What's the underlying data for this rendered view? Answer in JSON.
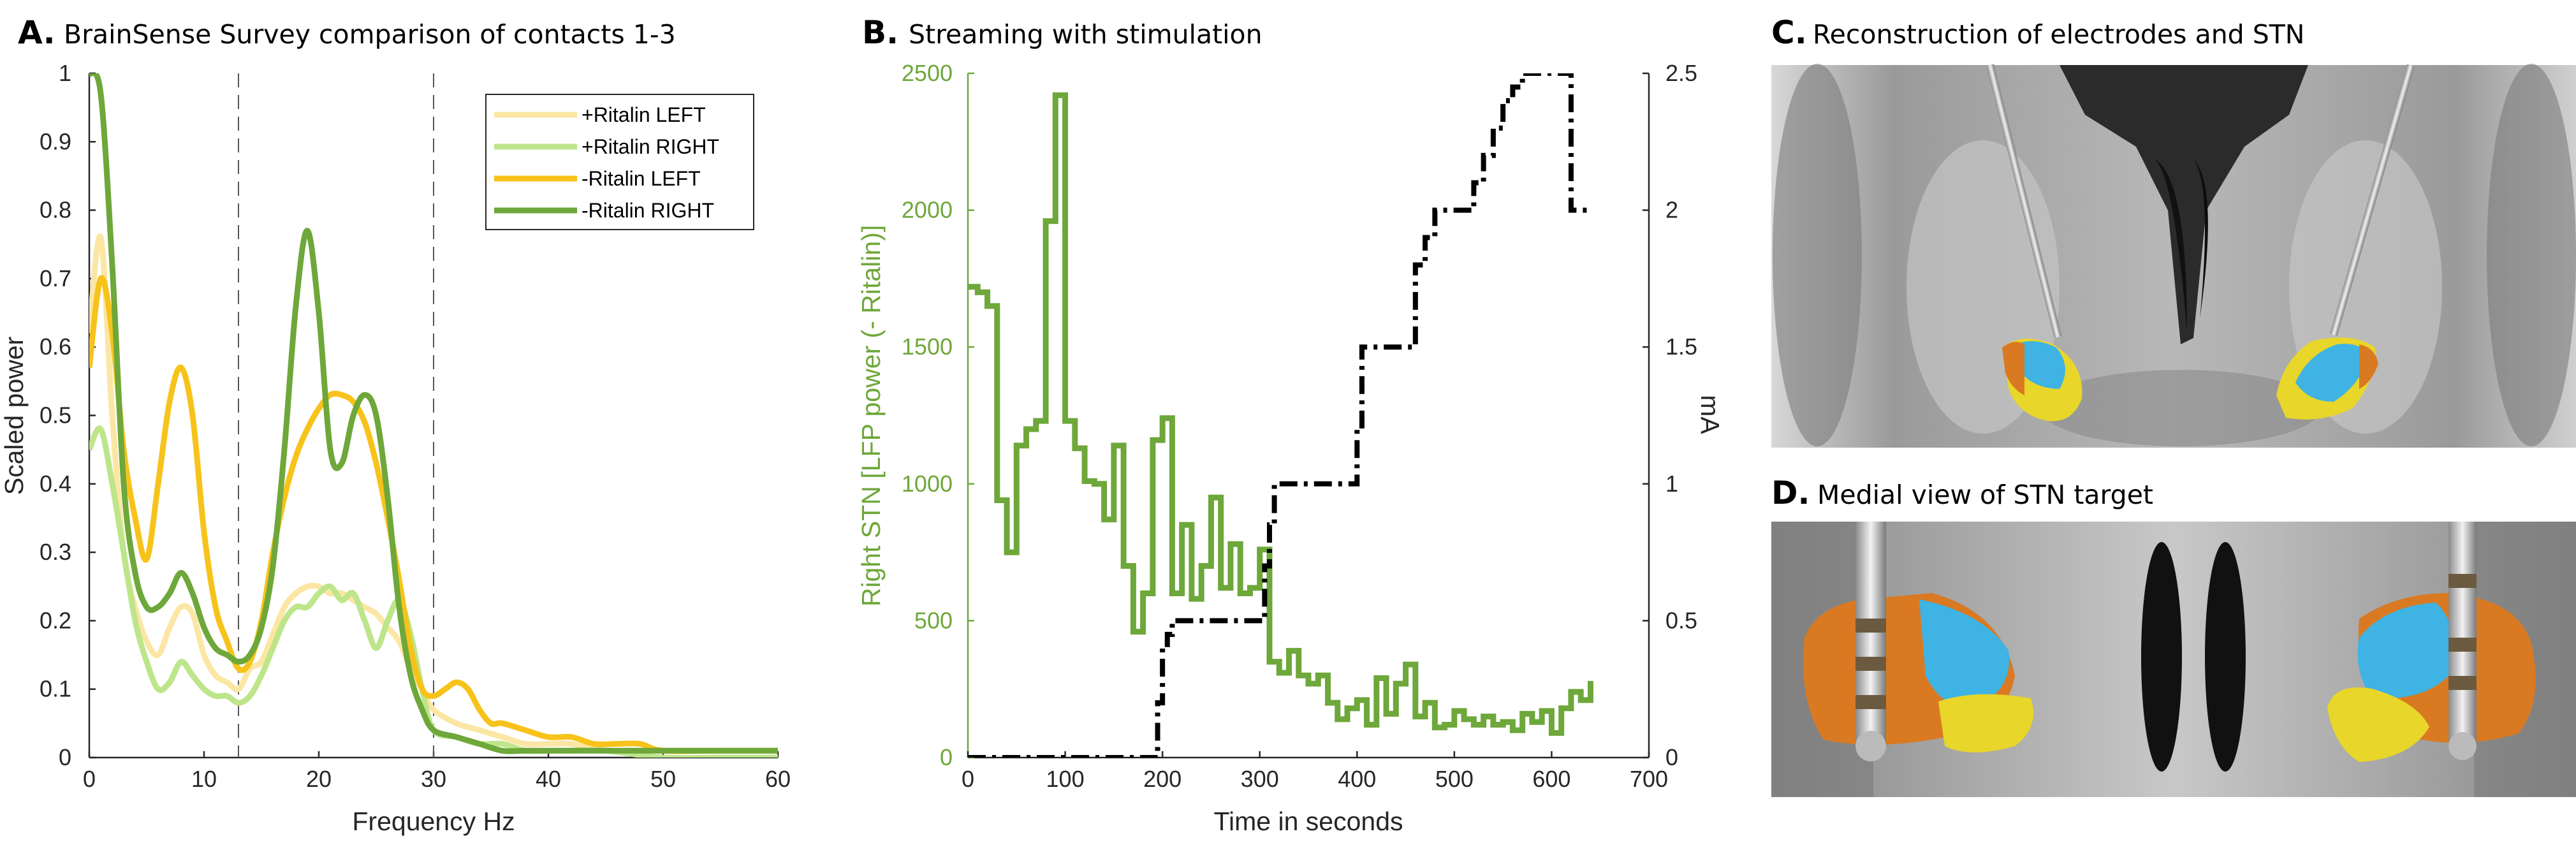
{
  "panels": {
    "a": {
      "letter": "A.",
      "title": "BrainSense Survey comparison of contacts 1-3",
      "xlabel": "Frequency Hz",
      "ylabel": "Scaled power",
      "legend": [
        "+Ritalin LEFT",
        "+Ritalin RIGHT",
        "-Ritalin LEFT",
        "-Ritalin RIGHT"
      ]
    },
    "b": {
      "letter": "B.",
      "title": "Streaming with stimulation",
      "xlabel": "Time in seconds",
      "ylabel_left": "Right STN [LFP power (- Ritalin)]",
      "ylabel_right": "mA"
    },
    "c": {
      "letter": "C.",
      "title": "Reconstruction of electrodes and STN"
    },
    "d": {
      "letter": "D.",
      "title": "Medial view of STN target"
    }
  },
  "colors": {
    "plus_left": "#fbe6a4",
    "plus_right": "#bde58a",
    "minus_left": "#f7c31b",
    "minus_right": "#6ea73a",
    "lfp": "#6ea73a",
    "stim": "#000000",
    "stn_blue": "#3fb3e3",
    "stn_orange": "#d97a22",
    "stn_yellow": "#e8d62a"
  },
  "chart_data": [
    {
      "type": "line",
      "panel": "A",
      "xlim": [
        0,
        60
      ],
      "ylim": [
        0,
        1
      ],
      "xticks": [
        "0",
        "10",
        "20",
        "30",
        "40",
        "50",
        "60"
      ],
      "yticks": [
        "0",
        "0.1",
        "0.2",
        "0.3",
        "0.4",
        "0.5",
        "0.6",
        "0.7",
        "0.8",
        "0.9",
        "1"
      ],
      "vlines": [
        13,
        30
      ],
      "legend_position": "top-right",
      "series": [
        {
          "name": "+Ritalin LEFT",
          "color": "#fbe6a4",
          "x": [
            0,
            1,
            2,
            3,
            4,
            5,
            6,
            7,
            8,
            9,
            10,
            11,
            12,
            13,
            14,
            15,
            16,
            17,
            18,
            19,
            20,
            21,
            22,
            23,
            24,
            25,
            26,
            27,
            28,
            29,
            30,
            32,
            34,
            36,
            38,
            40,
            42,
            45,
            50,
            55,
            60
          ],
          "y": [
            0.62,
            0.76,
            0.5,
            0.3,
            0.22,
            0.17,
            0.15,
            0.19,
            0.22,
            0.21,
            0.15,
            0.12,
            0.11,
            0.1,
            0.13,
            0.14,
            0.18,
            0.22,
            0.24,
            0.25,
            0.25,
            0.24,
            0.24,
            0.23,
            0.22,
            0.21,
            0.19,
            0.17,
            0.13,
            0.1,
            0.07,
            0.05,
            0.04,
            0.03,
            0.02,
            0.02,
            0.02,
            0.01,
            0.01,
            0.01,
            0.01
          ]
        },
        {
          "name": "+Ritalin RIGHT",
          "color": "#bde58a",
          "x": [
            0,
            1,
            2,
            3,
            4,
            5,
            6,
            7,
            8,
            9,
            10,
            11,
            12,
            13,
            14,
            15,
            16,
            17,
            18,
            19,
            20,
            21,
            22,
            23,
            24,
            25,
            26,
            27,
            28,
            29,
            30,
            32,
            34,
            36,
            38,
            40,
            42,
            45,
            50,
            55,
            60
          ],
          "y": [
            0.45,
            0.48,
            0.4,
            0.3,
            0.2,
            0.14,
            0.1,
            0.11,
            0.14,
            0.12,
            0.1,
            0.09,
            0.09,
            0.08,
            0.09,
            0.12,
            0.16,
            0.2,
            0.22,
            0.22,
            0.24,
            0.25,
            0.23,
            0.24,
            0.2,
            0.16,
            0.2,
            0.23,
            0.18,
            0.1,
            0.04,
            0.03,
            0.02,
            0.02,
            0.01,
            0.01,
            0.01,
            0.01,
            0.0,
            0.0,
            0.0
          ]
        },
        {
          "name": "-Ritalin LEFT",
          "color": "#f7c31b",
          "x": [
            0,
            1,
            2,
            3,
            4,
            5,
            6,
            7,
            8,
            9,
            10,
            11,
            12,
            13,
            14,
            15,
            16,
            17,
            18,
            19,
            20,
            21,
            22,
            23,
            24,
            25,
            26,
            27,
            28,
            29,
            30,
            31,
            32,
            33,
            34,
            35,
            36,
            38,
            40,
            42,
            44,
            46,
            48,
            50,
            55,
            60
          ],
          "y": [
            0.57,
            0.7,
            0.62,
            0.45,
            0.35,
            0.29,
            0.4,
            0.52,
            0.57,
            0.5,
            0.33,
            0.22,
            0.17,
            0.13,
            0.14,
            0.2,
            0.3,
            0.38,
            0.44,
            0.48,
            0.51,
            0.53,
            0.53,
            0.52,
            0.49,
            0.43,
            0.35,
            0.26,
            0.16,
            0.1,
            0.09,
            0.1,
            0.11,
            0.1,
            0.07,
            0.05,
            0.05,
            0.04,
            0.03,
            0.03,
            0.02,
            0.02,
            0.02,
            0.01,
            0.01,
            0.01
          ]
        },
        {
          "name": "-Ritalin RIGHT",
          "color": "#6ea73a",
          "x": [
            0,
            1,
            2,
            3,
            4,
            5,
            6,
            7,
            8,
            9,
            10,
            11,
            12,
            13,
            14,
            15,
            16,
            17,
            18,
            19,
            20,
            21,
            22,
            23,
            24,
            25,
            26,
            27,
            28,
            29,
            30,
            32,
            34,
            36,
            38,
            40,
            42,
            45,
            50,
            55,
            60
          ],
          "y": [
            1.0,
            0.97,
            0.72,
            0.4,
            0.27,
            0.22,
            0.22,
            0.24,
            0.27,
            0.24,
            0.19,
            0.16,
            0.15,
            0.14,
            0.15,
            0.19,
            0.28,
            0.45,
            0.66,
            0.77,
            0.65,
            0.45,
            0.43,
            0.5,
            0.53,
            0.5,
            0.38,
            0.22,
            0.12,
            0.07,
            0.04,
            0.03,
            0.02,
            0.01,
            0.01,
            0.01,
            0.01,
            0.01,
            0.01,
            0.01,
            0.01
          ]
        }
      ]
    },
    {
      "type": "line",
      "panel": "B",
      "xlim": [
        0,
        700
      ],
      "ylim_left": [
        0,
        2500
      ],
      "ylim_right": [
        0,
        2.5
      ],
      "xticks": [
        "0",
        "100",
        "200",
        "300",
        "400",
        "500",
        "600",
        "700"
      ],
      "yticks_left": [
        "0",
        "500",
        "1000",
        "1500",
        "2000",
        "2500"
      ],
      "yticks_right": [
        "0",
        "0.5",
        "1",
        "1.5",
        "2",
        "2.5"
      ],
      "series": [
        {
          "name": "LFP power",
          "axis": "left",
          "step": true,
          "color": "#6ea73a",
          "x": [
            0,
            10,
            20,
            30,
            40,
            50,
            60,
            70,
            80,
            90,
            100,
            110,
            120,
            130,
            140,
            150,
            160,
            170,
            180,
            190,
            200,
            210,
            220,
            230,
            240,
            250,
            260,
            270,
            280,
            290,
            300,
            310,
            320,
            330,
            340,
            350,
            360,
            370,
            380,
            390,
            400,
            410,
            420,
            430,
            440,
            450,
            460,
            470,
            480,
            490,
            500,
            510,
            520,
            530,
            540,
            550,
            560,
            570,
            580,
            590,
            600,
            610,
            620,
            630,
            640
          ],
          "y": [
            1720,
            1700,
            1650,
            940,
            750,
            1140,
            1200,
            1230,
            1960,
            2420,
            1230,
            1130,
            1010,
            1000,
            870,
            1140,
            700,
            460,
            600,
            1160,
            1240,
            600,
            850,
            580,
            700,
            950,
            620,
            780,
            600,
            620,
            760,
            350,
            310,
            390,
            300,
            270,
            300,
            200,
            140,
            180,
            210,
            120,
            290,
            160,
            270,
            340,
            150,
            200,
            110,
            120,
            170,
            140,
            120,
            150,
            120,
            130,
            100,
            160,
            130,
            170,
            90,
            180,
            240,
            210,
            280
          ]
        },
        {
          "name": "Stimulation mA",
          "axis": "right",
          "step": true,
          "color": "#000000",
          "x": [
            0,
            100,
            190,
            195,
            200,
            205,
            210,
            280,
            300,
            305,
            310,
            315,
            320,
            395,
            400,
            405,
            410,
            450,
            460,
            470,
            480,
            490,
            510,
            520,
            530,
            540,
            550,
            560,
            570,
            580,
            600,
            610,
            620,
            630,
            640
          ],
          "y": [
            0,
            0,
            0,
            0.2,
            0.4,
            0.45,
            0.5,
            0.5,
            0.5,
            0.7,
            0.85,
            1.0,
            1.0,
            1.0,
            1.2,
            1.5,
            1.5,
            1.5,
            1.8,
            1.9,
            2.0,
            2.0,
            2.0,
            2.1,
            2.2,
            2.3,
            2.4,
            2.45,
            2.5,
            2.5,
            2.5,
            2.5,
            2.0,
            2.0,
            2.0
          ]
        }
      ]
    }
  ]
}
